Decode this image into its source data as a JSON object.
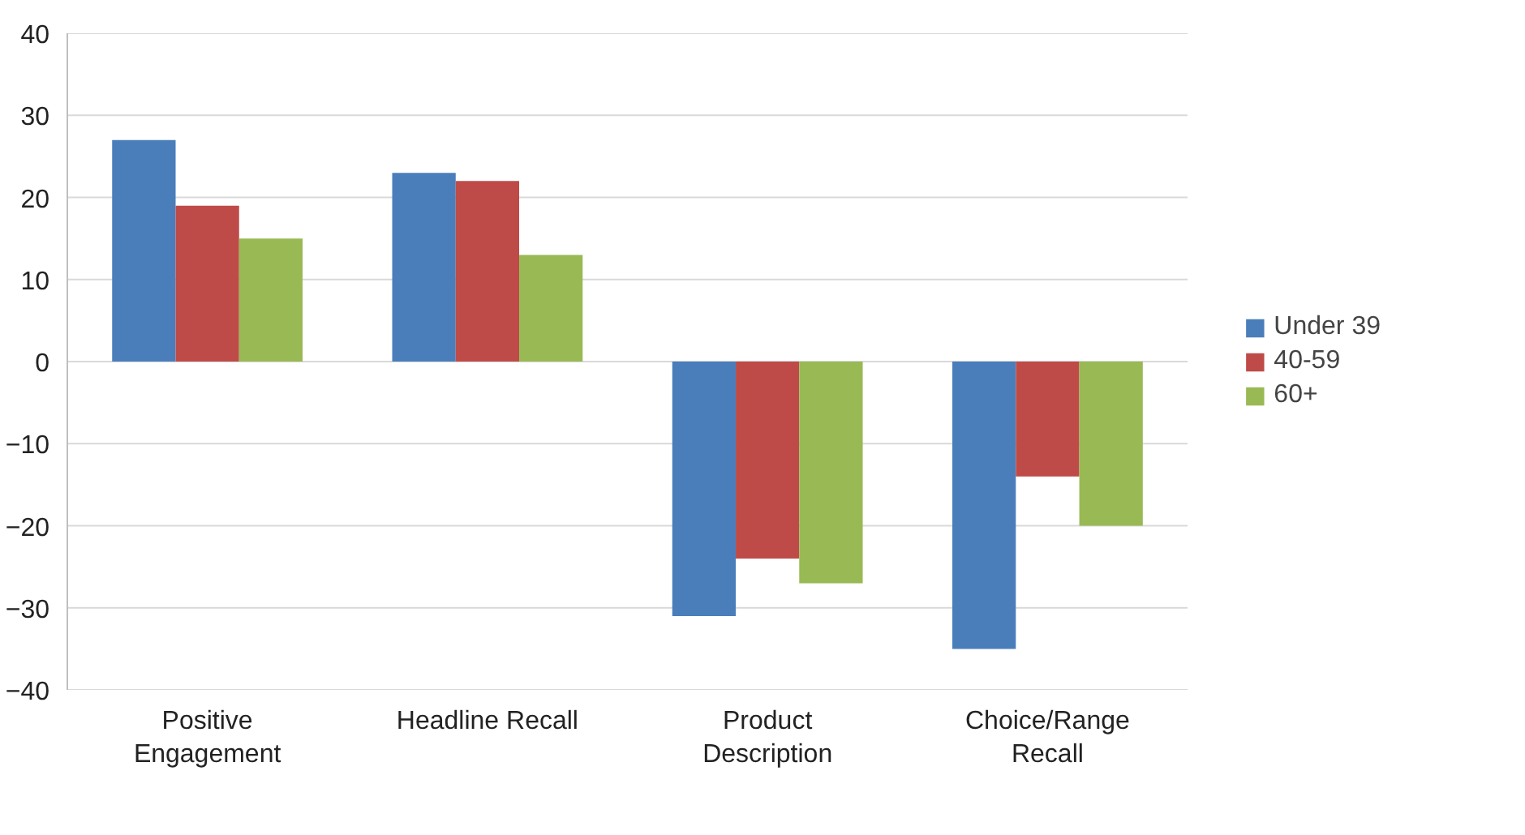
{
  "chart_data": {
    "type": "bar",
    "categories": [
      "Positive Engagement",
      "Headline Recall",
      "Product Description",
      "Choice/Range Recall"
    ],
    "series": [
      {
        "name": "Under 39",
        "color": "#4a7ebb",
        "values": [
          27,
          23,
          -31,
          -35
        ]
      },
      {
        "name": "40-59",
        "color": "#be4b48",
        "values": [
          19,
          22,
          -24,
          -14
        ]
      },
      {
        "name": "60+",
        "color": "#98b954",
        "values": [
          15,
          13,
          -27,
          -20
        ]
      }
    ],
    "ylim": [
      -40,
      40
    ],
    "yticks": [
      -40,
      -30,
      -20,
      -10,
      0,
      10,
      20,
      30,
      40
    ],
    "grid": "y",
    "legend": "right"
  }
}
